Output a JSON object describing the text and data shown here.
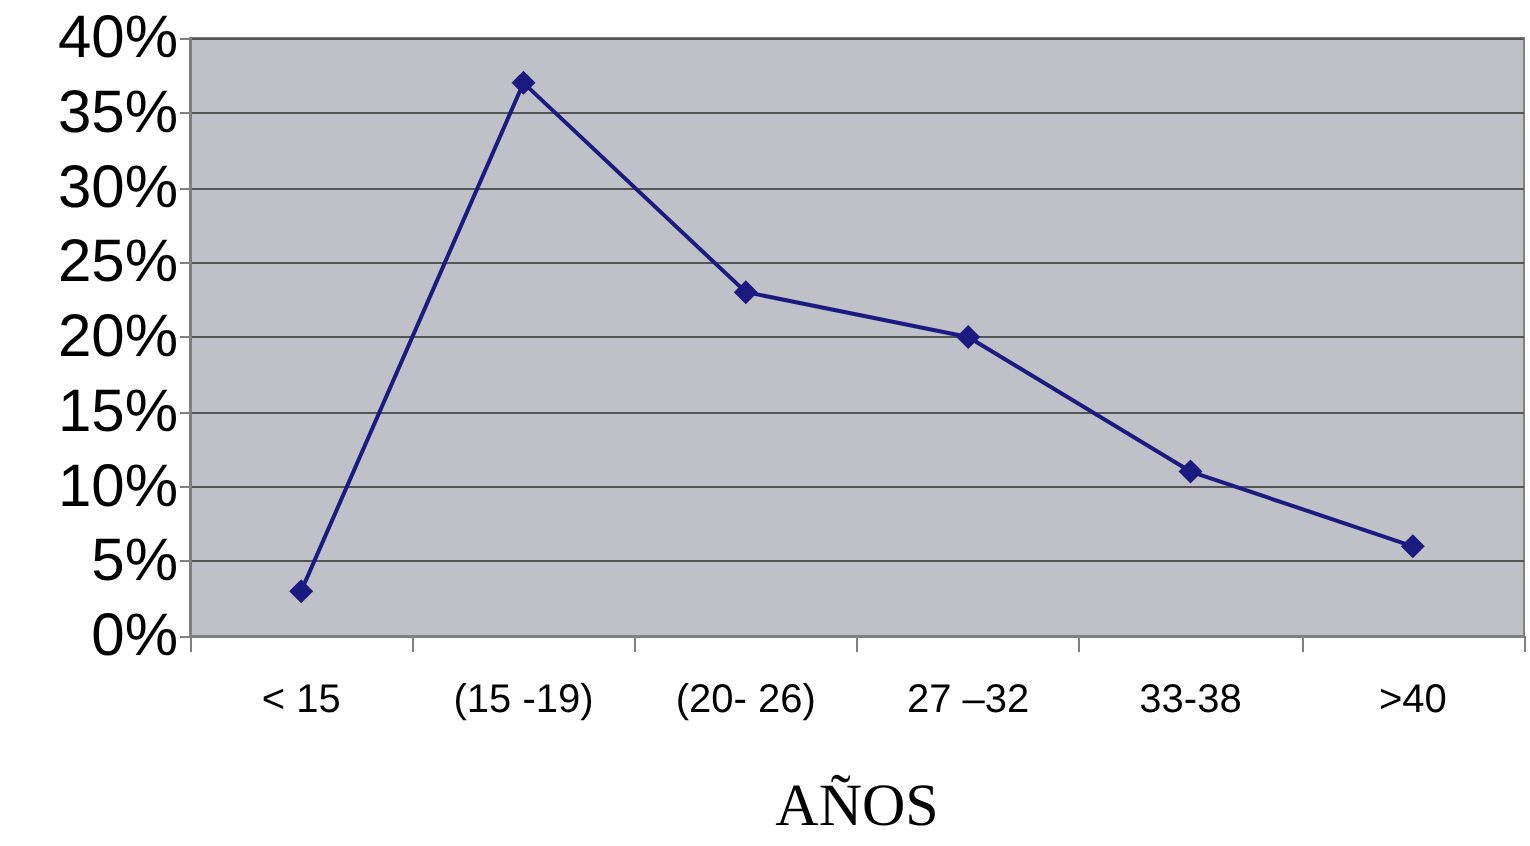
{
  "chart_data": {
    "type": "line",
    "xlabel": "AÑOS",
    "categories": [
      "< 15",
      "(15 -19)",
      "(20- 26)",
      "27 –32",
      "33-38",
      ">40"
    ],
    "series": [
      {
        "color": "#1a1a80",
        "values": [
          3,
          37,
          23,
          20,
          11,
          6
        ]
      }
    ],
    "ylim": [
      0,
      40
    ],
    "yticks": [
      {
        "value": 0,
        "label": "0%"
      },
      {
        "value": 5,
        "label": "5%"
      },
      {
        "value": 10,
        "label": "10%"
      },
      {
        "value": 15,
        "label": "15%"
      },
      {
        "value": 20,
        "label": "20%"
      },
      {
        "value": 25,
        "label": "25%"
      },
      {
        "value": 30,
        "label": "30%"
      },
      {
        "value": 35,
        "label": "35%"
      },
      {
        "value": 40,
        "label": "40%"
      }
    ],
    "grid": "y",
    "marker": "diamond",
    "line_style": "solid"
  }
}
